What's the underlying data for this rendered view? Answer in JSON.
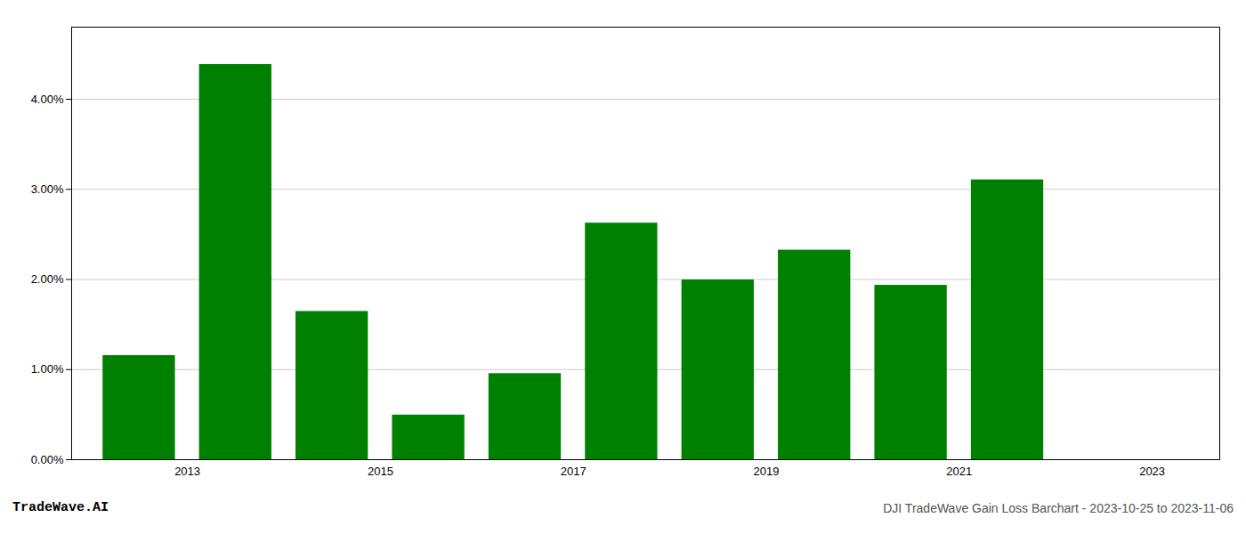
{
  "chart_data": {
    "type": "bar",
    "title": "DJI TradeWave Gain Loss Barchart - 2023-10-25 to 2023-11-06",
    "annotations": [
      {
        "text": "TradeWave.AI"
      }
    ],
    "x": [
      2013,
      2014,
      2015,
      2016,
      2017,
      2018,
      2019,
      2020,
      2021,
      2022,
      2023
    ],
    "values": [
      0.01155,
      0.04385,
      0.01645,
      0.00495,
      0.00955,
      0.02625,
      0.01995,
      0.02325,
      0.01935,
      0.03105,
      null
    ],
    "color": "#008000",
    "xlim": [
      2012.3,
      2024.2
    ],
    "xticks": [
      {
        "value": 2013.5,
        "label": "2013"
      },
      {
        "value": 2015.5,
        "label": "2015"
      },
      {
        "value": 2017.5,
        "label": "2017"
      },
      {
        "value": 2019.5,
        "label": "2019"
      },
      {
        "value": 2021.5,
        "label": "2021"
      },
      {
        "value": 2023.5,
        "label": "2023"
      }
    ],
    "ylim": [
      0,
      0.048
    ],
    "yticks": [
      {
        "value": 0.0,
        "label": "0.00%"
      },
      {
        "value": 0.01,
        "label": "1.00%"
      },
      {
        "value": 0.02,
        "label": "2.00%"
      },
      {
        "value": 0.03,
        "label": "3.00%"
      },
      {
        "value": 0.04,
        "label": "4.00%"
      }
    ],
    "grid": true
  }
}
